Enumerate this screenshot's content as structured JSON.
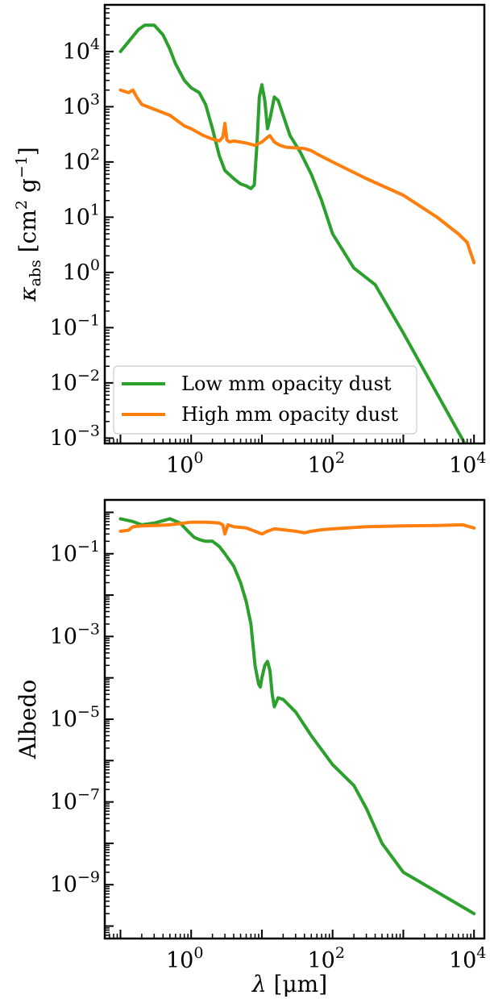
{
  "chart_data": [
    {
      "type": "line",
      "panel": "top",
      "xlabel": "",
      "ylabel": "κ_abs [cm² g⁻¹]",
      "ylabel_parts": {
        "kappa": "κ",
        "sub": "abs",
        "units_a": "[cm",
        "sq": "2",
        "units_b": " g",
        "inv": "−1",
        "units_c": "]"
      },
      "x_scale": "log",
      "y_scale": "log",
      "xlim": [
        0.06,
        14000
      ],
      "ylim": [
        0.0008,
        70000
      ],
      "x_ticks": [
        {
          "value": 1,
          "base": "10",
          "exp": "0"
        },
        {
          "value": 100,
          "base": "10",
          "exp": "2"
        },
        {
          "value": 10000,
          "base": "10",
          "exp": "4"
        }
      ],
      "y_ticks": [
        {
          "value": 0.001,
          "base": "10",
          "exp": "−3"
        },
        {
          "value": 0.01,
          "base": "10",
          "exp": "−2"
        },
        {
          "value": 0.1,
          "base": "10",
          "exp": "−1"
        },
        {
          "value": 1,
          "base": "10",
          "exp": "0"
        },
        {
          "value": 10,
          "base": "10",
          "exp": "1"
        },
        {
          "value": 100,
          "base": "10",
          "exp": "2"
        },
        {
          "value": 1000,
          "base": "10",
          "exp": "3"
        },
        {
          "value": 10000,
          "base": "10",
          "exp": "4"
        }
      ],
      "legend": {
        "placement": "bottom-left",
        "entries": [
          "Low mm opacity dust",
          "High mm opacity dust"
        ]
      },
      "series": [
        {
          "name": "Low mm opacity dust",
          "color": "#2ca02c",
          "x": [
            0.1,
            0.13,
            0.18,
            0.22,
            0.3,
            0.4,
            0.5,
            0.6,
            0.8,
            1.0,
            1.3,
            1.6,
            2.0,
            2.5,
            3.0,
            4.0,
            5.0,
            6.0,
            7.0,
            7.8,
            8.5,
            9.2,
            10.0,
            11.0,
            12.0,
            13.0,
            15.0,
            17.0,
            20.0,
            25.0,
            35.0,
            50.0,
            70.0,
            100.0,
            200.0,
            400.0,
            1000.0,
            10000.0
          ],
          "y": [
            10000,
            15000,
            25000,
            30000,
            30000,
            20000,
            11000,
            6000,
            3000,
            2200,
            1800,
            1100,
            400,
            130,
            70,
            50,
            40,
            37,
            33,
            38,
            200,
            1500,
            2500,
            1300,
            400,
            600,
            1500,
            1300,
            700,
            300,
            150,
            60,
            20,
            5,
            1.2,
            0.6,
            0.08,
            0.0004
          ]
        },
        {
          "name": "High mm opacity dust",
          "color": "#ff7f0e",
          "x": [
            0.1,
            0.13,
            0.15,
            0.17,
            0.2,
            0.3,
            0.5,
            0.8,
            1.0,
            1.5,
            2.0,
            2.5,
            2.8,
            3.0,
            3.2,
            3.5,
            4.0,
            5.0,
            6.0,
            8.0,
            10.0,
            12.0,
            13.0,
            15.0,
            18.0,
            22.0,
            30.0,
            40.0,
            50.0,
            60.0,
            100.0,
            300.0,
            1000.0,
            3000.0,
            6000.0,
            8000.0,
            10000.0
          ],
          "y": [
            2000,
            1800,
            2000,
            1500,
            1100,
            900,
            700,
            450,
            400,
            300,
            260,
            240,
            280,
            500,
            250,
            230,
            240,
            230,
            220,
            200,
            230,
            280,
            300,
            230,
            200,
            185,
            180,
            175,
            160,
            140,
            100,
            50,
            25,
            10,
            5,
            3.5,
            1.5
          ]
        }
      ]
    },
    {
      "type": "line",
      "panel": "bottom",
      "xlabel": "λ [μm]",
      "xlabel_parts": {
        "lambda": "λ",
        "units": "[μm]"
      },
      "ylabel": "Albedo",
      "x_scale": "log",
      "y_scale": "log",
      "xlim": [
        0.06,
        14000
      ],
      "ylim": [
        5e-11,
        2.0
      ],
      "x_ticks": [
        {
          "value": 1,
          "base": "10",
          "exp": "0"
        },
        {
          "value": 100,
          "base": "10",
          "exp": "2"
        },
        {
          "value": 10000,
          "base": "10",
          "exp": "4"
        }
      ],
      "y_ticks": [
        {
          "value": 1e-09,
          "base": "10",
          "exp": "−9"
        },
        {
          "value": 1e-07,
          "base": "10",
          "exp": "−7"
        },
        {
          "value": 1e-05,
          "base": "10",
          "exp": "−5"
        },
        {
          "value": 0.001,
          "base": "10",
          "exp": "−3"
        },
        {
          "value": 0.1,
          "base": "10",
          "exp": "−1"
        }
      ],
      "series": [
        {
          "name": "Low mm opacity dust",
          "color": "#2ca02c",
          "x": [
            0.1,
            0.15,
            0.2,
            0.3,
            0.5,
            0.7,
            0.9,
            1.1,
            1.3,
            1.6,
            2.0,
            2.5,
            3.0,
            4.0,
            5.0,
            6.0,
            7.0,
            8.0,
            9.0,
            9.5,
            10.0,
            11.0,
            12.0,
            13.0,
            14.0,
            15.0,
            17.0,
            20.0,
            30.0,
            50.0,
            100.0,
            200.0,
            300.0,
            500.0,
            1000.0,
            10000.0
          ],
          "y": [
            0.7,
            0.6,
            0.5,
            0.55,
            0.7,
            0.55,
            0.35,
            0.25,
            0.22,
            0.2,
            0.2,
            0.15,
            0.1,
            0.05,
            0.02,
            0.007,
            0.002,
            0.0002,
            7e-05,
            6e-05,
            0.0001,
            0.0002,
            0.00025,
            0.00015,
            4e-05,
            2e-05,
            3.3e-05,
            3e-05,
            1.5e-05,
            4e-06,
            8e-07,
            2.5e-07,
            7e-08,
            1e-08,
            2e-09,
            2e-10
          ]
        },
        {
          "name": "High mm opacity dust",
          "color": "#ff7f0e",
          "x": [
            0.1,
            0.13,
            0.15,
            0.2,
            0.3,
            0.5,
            0.8,
            1.0,
            1.5,
            2.0,
            2.5,
            2.8,
            3.0,
            3.3,
            4.0,
            6.0,
            8.0,
            10.0,
            12.0,
            15.0,
            20.0,
            30.0,
            40.0,
            50.0,
            70.0,
            100.0,
            300.0,
            1000.0,
            3000.0,
            7000.0,
            10000.0
          ],
          "y": [
            0.35,
            0.37,
            0.45,
            0.47,
            0.48,
            0.5,
            0.55,
            0.58,
            0.58,
            0.57,
            0.55,
            0.5,
            0.3,
            0.5,
            0.45,
            0.42,
            0.35,
            0.3,
            0.35,
            0.4,
            0.38,
            0.35,
            0.32,
            0.35,
            0.38,
            0.4,
            0.45,
            0.47,
            0.48,
            0.5,
            0.42
          ]
        }
      ]
    }
  ]
}
